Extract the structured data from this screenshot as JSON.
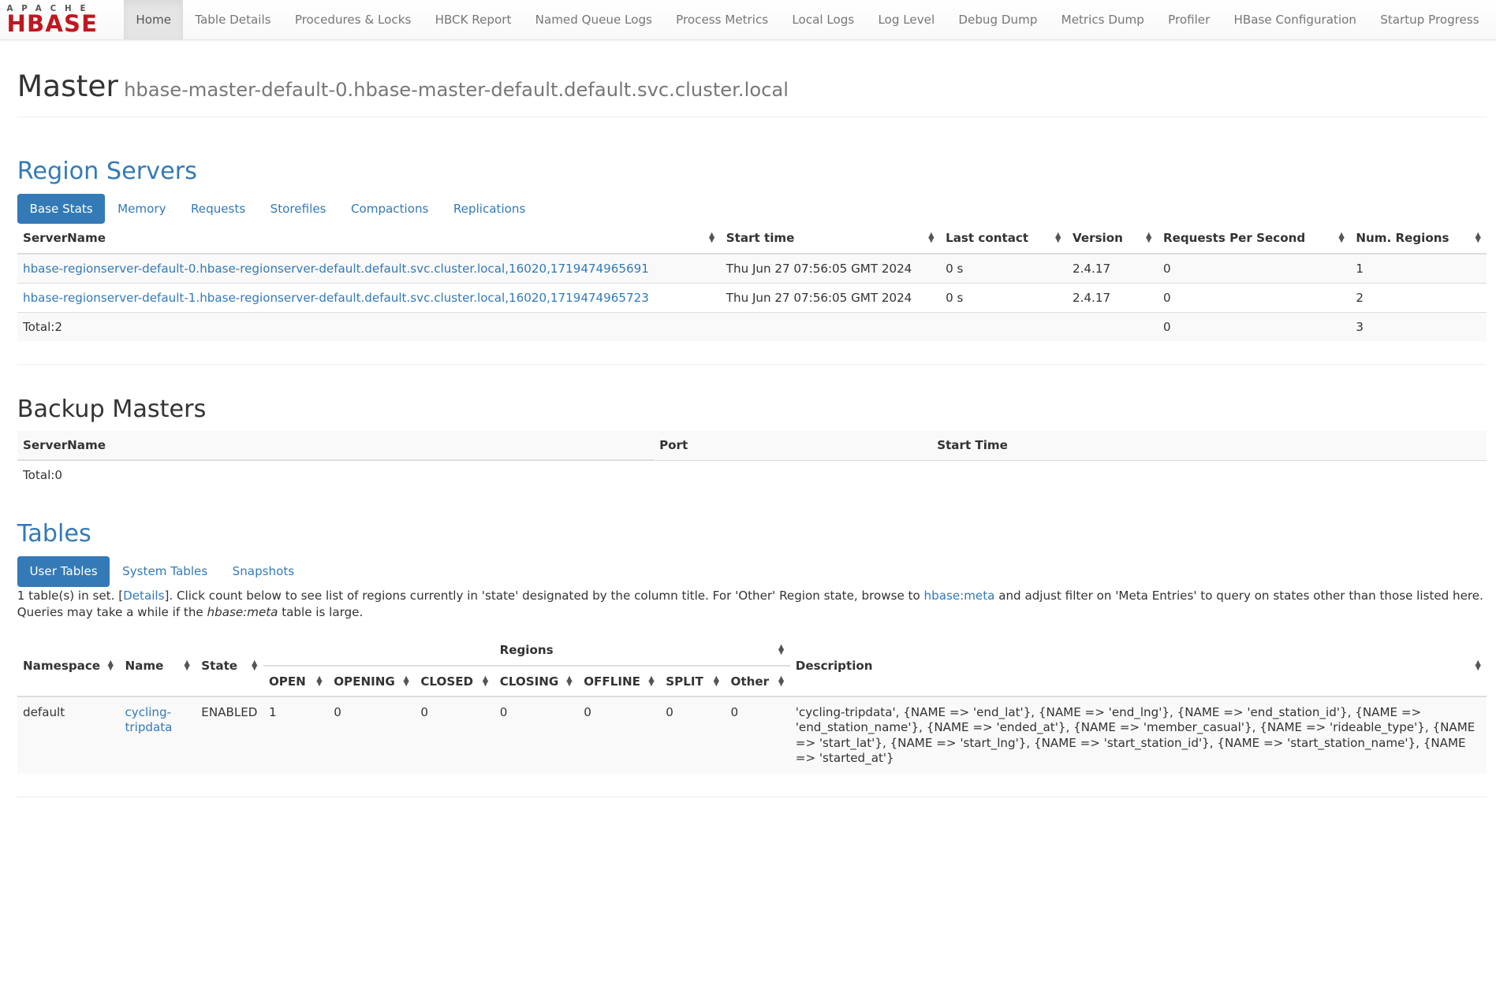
{
  "logo": {
    "top": "APACHE",
    "bottom": "HBASE"
  },
  "nav": [
    "Home",
    "Table Details",
    "Procedures & Locks",
    "HBCK Report",
    "Named Queue Logs",
    "Process Metrics",
    "Local Logs",
    "Log Level",
    "Debug Dump",
    "Metrics Dump",
    "Profiler",
    "HBase Configuration",
    "Startup Progress"
  ],
  "header": {
    "title": "Master",
    "host": "hbase-master-default-0.hbase-master-default.default.svc.cluster.local"
  },
  "region_servers": {
    "title": "Region Servers",
    "tabs": [
      "Base Stats",
      "Memory",
      "Requests",
      "Storefiles",
      "Compactions",
      "Replications"
    ],
    "columns": [
      "ServerName",
      "Start time",
      "Last contact",
      "Version",
      "Requests Per Second",
      "Num. Regions"
    ],
    "rows": [
      [
        "hbase-regionserver-default-0.hbase-regionserver-default.default.svc.cluster.local,16020,1719474965691",
        "Thu Jun 27 07:56:05 GMT 2024",
        "0 s",
        "2.4.17",
        "0",
        "1"
      ],
      [
        "hbase-regionserver-default-1.hbase-regionserver-default.default.svc.cluster.local,16020,1719474965723",
        "Thu Jun 27 07:56:05 GMT 2024",
        "0 s",
        "2.4.17",
        "0",
        "2"
      ]
    ],
    "total": {
      "label": "Total:2",
      "rps": "0",
      "regions": "3"
    }
  },
  "backup_masters": {
    "title": "Backup Masters",
    "columns": [
      "ServerName",
      "Port",
      "Start Time"
    ],
    "total": "Total:0"
  },
  "tables": {
    "title": "Tables",
    "tabs": [
      "User Tables",
      "System Tables",
      "Snapshots"
    ],
    "info": {
      "p1": "1 table(s) in set. [",
      "details": "Details",
      "p2": "]. Click count below to see list of regions currently in 'state' designated by the column title. For 'Other' Region state, browse to ",
      "meta_link": "hbase:meta",
      "p3": " and adjust filter on 'Meta Entries' to query on states other than those listed here. Queries may take a while if the ",
      "meta_em": "hbase:meta",
      "p4": " table is large."
    },
    "columns": {
      "namespace": "Namespace",
      "name": "Name",
      "state": "State",
      "regions": "Regions",
      "sub": [
        "OPEN",
        "OPENING",
        "CLOSED",
        "CLOSING",
        "OFFLINE",
        "SPLIT",
        "Other"
      ],
      "description": "Description"
    },
    "row": {
      "namespace": "default",
      "name": "cycling-tripdata",
      "state": "ENABLED",
      "counts": [
        "1",
        "0",
        "0",
        "0",
        "0",
        "0",
        "0"
      ],
      "description": "'cycling-tripdata', {NAME => 'end_lat'}, {NAME => 'end_lng'}, {NAME => 'end_station_id'}, {NAME => 'end_station_name'}, {NAME => 'ended_at'}, {NAME => 'member_casual'}, {NAME => 'rideable_type'}, {NAME => 'start_lat'}, {NAME => 'start_lng'}, {NAME => 'start_station_id'}, {NAME => 'start_station_name'}, {NAME => 'started_at'}"
    }
  },
  "colors": {
    "link": "#337ab7",
    "logo": "#c0171f"
  }
}
